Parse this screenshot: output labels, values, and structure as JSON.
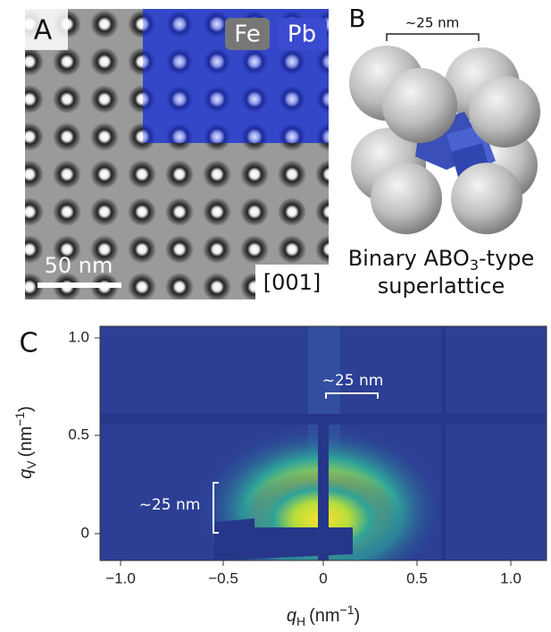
{
  "panel_a": {
    "label": "A",
    "inset_labels": [
      "Fe",
      "Pb"
    ],
    "scale_bar": "50 nm",
    "direction": "[001]"
  },
  "panel_b": {
    "label": "B",
    "size_label": "~25 nm",
    "caption_line1_parts": [
      "Binary ABO",
      "3",
      "-type"
    ],
    "caption_line2": "superlattice"
  },
  "panel_c": {
    "label": "C",
    "size_label_h": "~25 nm",
    "size_label_v": "~25 nm",
    "x_ticks": [
      "−1.0",
      "−0.5",
      "0",
      "0.5",
      "1.0"
    ],
    "y_ticks": [
      "0",
      "0.5",
      "1.0"
    ],
    "x_label": [
      "q",
      "H",
      "(nm",
      "−1",
      ")"
    ],
    "y_label": [
      "q",
      "V",
      "(nm",
      "−1",
      ")"
    ]
  }
}
